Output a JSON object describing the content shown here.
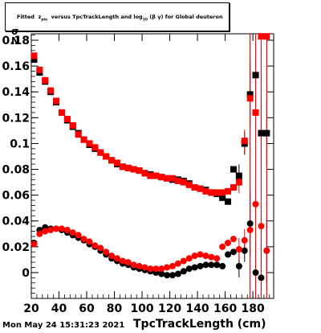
{
  "title": {
    "pre": "Fitted",
    "z": "z",
    "zsub": "pio",
    "mid": "versus TpcTrackLength and log",
    "logsub": "10",
    "post": "(β γ) for Global deuteron"
  },
  "corner_label": "σ\nN",
  "footer": "Mon May 24 15:31:23 2021",
  "colors": {
    "black_series": "#000000",
    "red_series": "#ff0000",
    "axis": "#000000"
  },
  "chart_data": {
    "type": "scatter",
    "xlabel": "TpcTrackLength (cm)",
    "ylabel": "",
    "xlim": [
      20,
      195
    ],
    "ylim": [
      -0.02,
      0.185
    ],
    "xticks": [
      20,
      40,
      60,
      80,
      100,
      120,
      140,
      160,
      180
    ],
    "yticks": [
      0,
      0.02,
      0.04,
      0.06,
      0.08,
      0.1,
      0.12,
      0.14,
      0.16,
      0.18
    ],
    "ytick_labels": [
      "0",
      "0.02",
      "0.04",
      "0.06",
      "0.08",
      "0.1",
      "0.12",
      "0.14",
      "0.16",
      "0.18"
    ],
    "series": [
      {
        "color": "black",
        "marker": "square",
        "group": "sigma",
        "x": [
          22,
          26,
          30,
          34,
          38,
          42,
          46,
          50,
          54,
          58,
          62,
          66,
          70,
          74,
          78,
          82,
          86,
          90,
          94,
          98,
          102,
          106,
          110,
          114,
          118,
          122,
          126,
          130,
          134,
          138,
          142,
          146,
          150,
          154,
          158,
          162,
          166,
          170,
          174,
          178,
          182,
          186,
          190
        ],
        "y": [
          0.165,
          0.155,
          0.148,
          0.14,
          0.132,
          0.124,
          0.118,
          0.113,
          0.108,
          0.103,
          0.099,
          0.096,
          0.093,
          0.09,
          0.087,
          0.084,
          0.082,
          0.081,
          0.08,
          0.079,
          0.077,
          0.076,
          0.075,
          0.074,
          0.073,
          0.072,
          0.072,
          0.071,
          0.069,
          0.066,
          0.065,
          0.064,
          0.062,
          0.061,
          0.058,
          0.055,
          0.08,
          0.075,
          0.1,
          0.138,
          0.153,
          0.108,
          0.108
        ]
      },
      {
        "color": "red",
        "marker": "square",
        "group": "sigma",
        "x": [
          22,
          26,
          30,
          34,
          38,
          42,
          46,
          50,
          54,
          58,
          62,
          66,
          70,
          74,
          78,
          82,
          86,
          90,
          94,
          98,
          102,
          106,
          110,
          114,
          118,
          122,
          126,
          130,
          134,
          138,
          142,
          146,
          150,
          154,
          158,
          162,
          166,
          170,
          174,
          178,
          182,
          186,
          190
        ],
        "y": [
          0.168,
          0.157,
          0.149,
          0.141,
          0.133,
          0.124,
          0.119,
          0.114,
          0.107,
          0.103,
          0.1,
          0.097,
          0.093,
          0.09,
          0.087,
          0.085,
          0.082,
          0.081,
          0.08,
          0.079,
          0.077,
          0.075,
          0.075,
          0.074,
          0.073,
          0.073,
          0.071,
          0.07,
          0.068,
          0.066,
          0.065,
          0.063,
          0.062,
          0.062,
          0.062,
          0.063,
          0.066,
          0.07,
          0.102,
          0.135,
          0.124,
          0.183,
          0.183
        ]
      },
      {
        "color": "black",
        "marker": "circle",
        "group": "mean",
        "x": [
          22,
          26,
          30,
          34,
          38,
          42,
          46,
          50,
          54,
          58,
          62,
          66,
          70,
          74,
          78,
          82,
          86,
          90,
          94,
          98,
          102,
          106,
          110,
          114,
          118,
          122,
          126,
          130,
          134,
          138,
          142,
          146,
          150,
          154,
          158,
          162,
          166,
          170,
          174,
          178,
          182,
          186,
          190
        ],
        "y": [
          0.023,
          0.033,
          0.035,
          0.034,
          0.034,
          0.033,
          0.031,
          0.029,
          0.027,
          0.025,
          0.022,
          0.02,
          0.017,
          0.014,
          0.011,
          0.009,
          0.007,
          0.006,
          0.004,
          0.003,
          0.002,
          0.001,
          0.0,
          -0.001,
          -0.002,
          -0.002,
          -0.001,
          0.001,
          0.003,
          0.004,
          0.005,
          0.006,
          0.006,
          0.006,
          0.005,
          0.014,
          0.016,
          0.005,
          0.017,
          0.038,
          0.0,
          -0.004,
          0.017
        ]
      },
      {
        "color": "red",
        "marker": "circle",
        "group": "mean",
        "x": [
          22,
          26,
          30,
          34,
          38,
          42,
          46,
          50,
          54,
          58,
          62,
          66,
          70,
          74,
          78,
          82,
          86,
          90,
          94,
          98,
          102,
          106,
          110,
          114,
          118,
          122,
          126,
          130,
          134,
          138,
          142,
          146,
          150,
          154,
          158,
          162,
          166,
          170,
          174,
          178,
          182,
          186,
          190
        ],
        "y": [
          0.022,
          0.03,
          0.032,
          0.033,
          0.034,
          0.034,
          0.033,
          0.031,
          0.029,
          0.026,
          0.024,
          0.021,
          0.019,
          0.016,
          0.013,
          0.011,
          0.009,
          0.008,
          0.006,
          0.005,
          0.004,
          0.003,
          0.003,
          0.003,
          0.004,
          0.005,
          0.007,
          0.009,
          0.011,
          0.013,
          0.014,
          0.013,
          0.012,
          0.011,
          0.02,
          0.023,
          0.026,
          0.018,
          0.025,
          0.033,
          0.053,
          0.036,
          0.017
        ]
      }
    ]
  }
}
